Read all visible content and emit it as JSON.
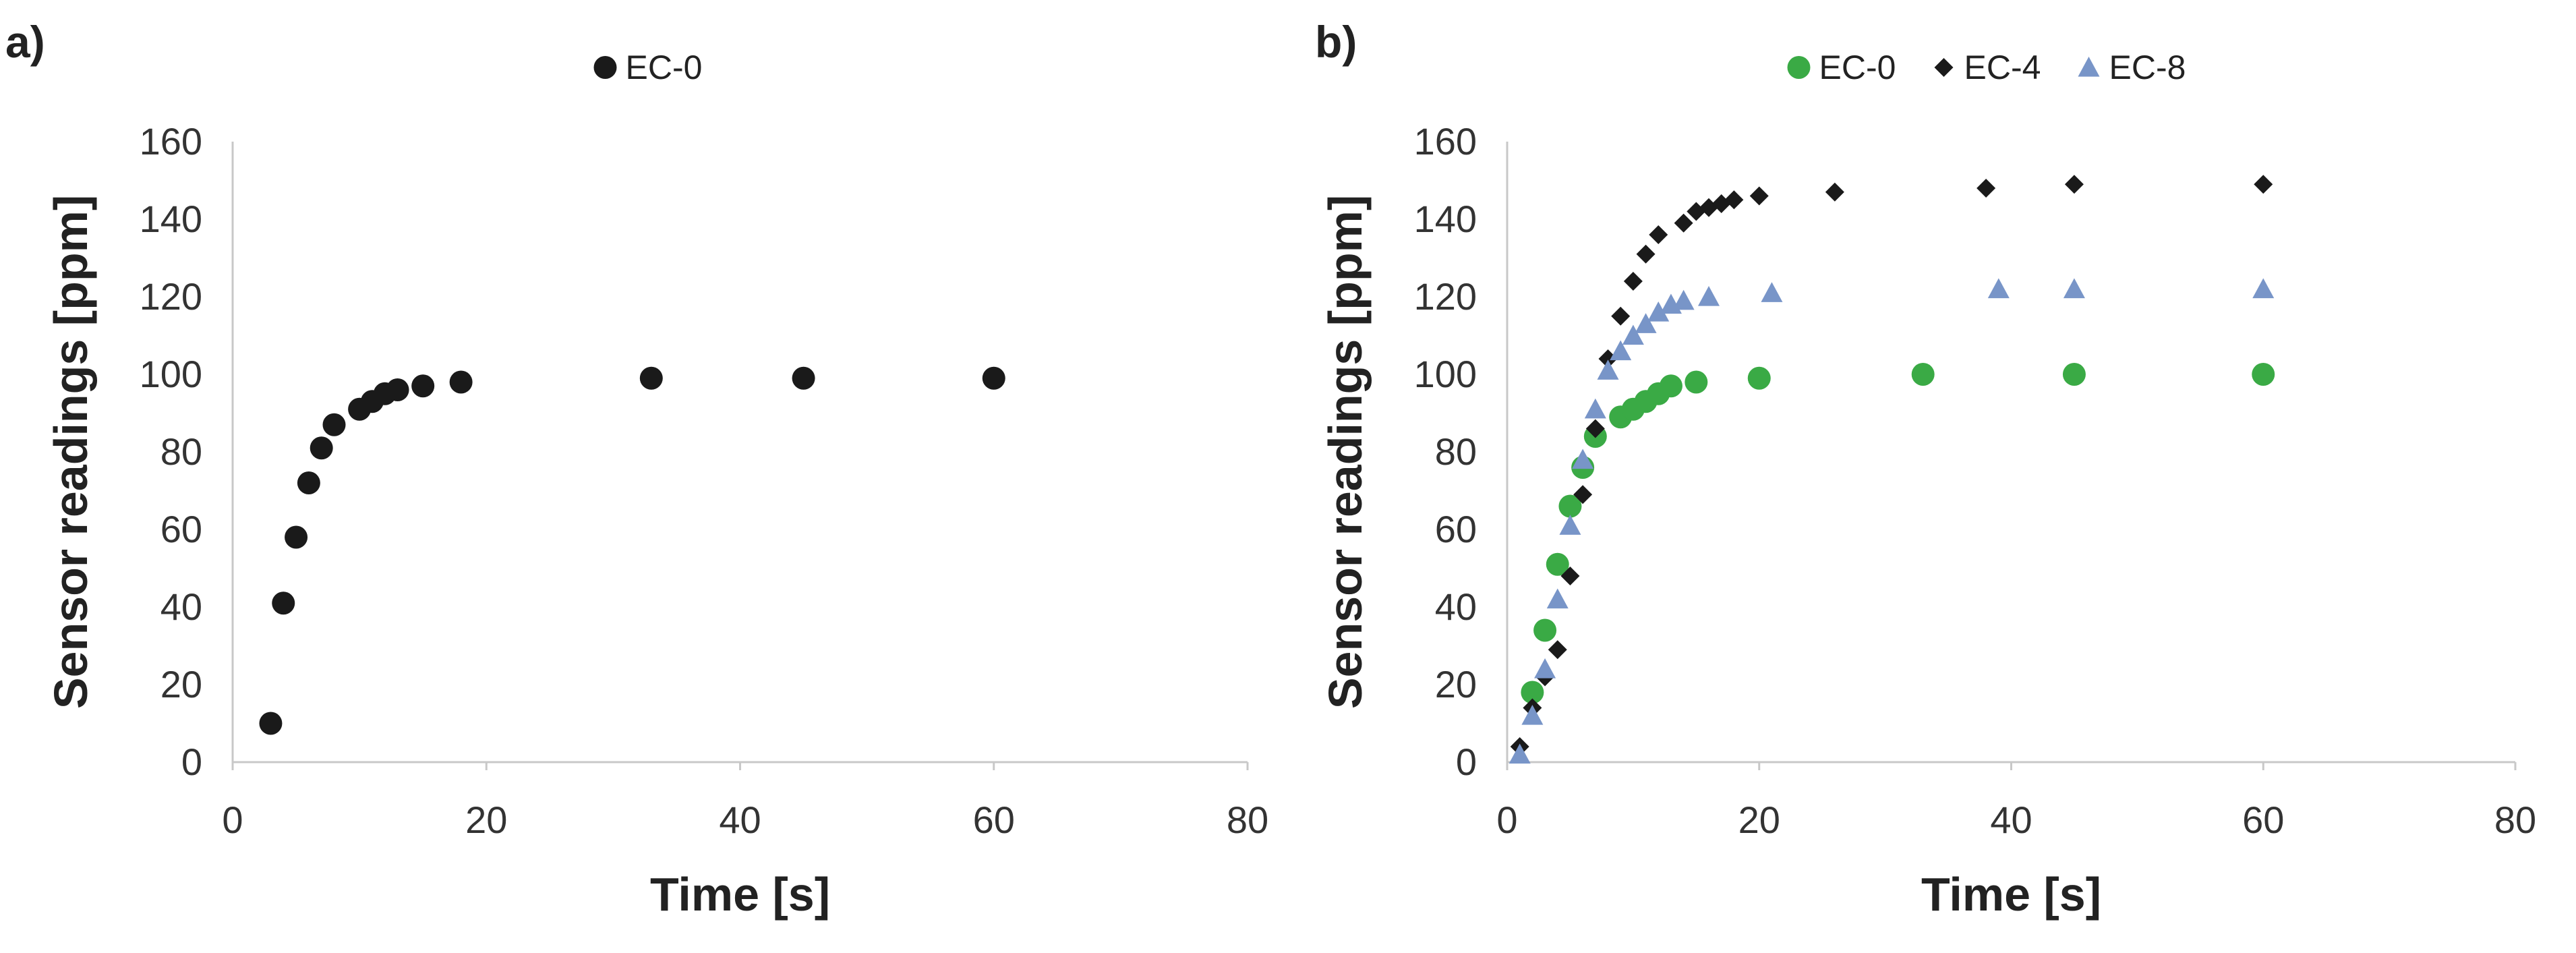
{
  "chart_data": [
    {
      "type": "scatter",
      "panel_label": "a)",
      "xlabel": "Time [s]",
      "ylabel": "Sensor readings [ppm]",
      "xlim": [
        0,
        80
      ],
      "ylim": [
        0,
        160
      ],
      "xticks": [
        0,
        20,
        40,
        60,
        80
      ],
      "yticks": [
        0,
        20,
        40,
        60,
        80,
        100,
        120,
        140,
        160
      ],
      "grid": false,
      "legend_position": "top-center",
      "series": [
        {
          "name": "EC-0",
          "marker": "circle",
          "color": "#1a1a1a",
          "x": [
            3,
            4,
            5,
            6,
            7,
            8,
            10,
            11,
            12,
            13,
            15,
            18,
            33,
            45,
            60
          ],
          "y": [
            10,
            41,
            58,
            72,
            81,
            87,
            91,
            93,
            95,
            96,
            97,
            98,
            99,
            99,
            99
          ]
        }
      ]
    },
    {
      "type": "scatter",
      "panel_label": "b)",
      "xlabel": "Time [s]",
      "ylabel": "Sensor readings [ppm]",
      "xlim": [
        0,
        80
      ],
      "ylim": [
        0,
        160
      ],
      "xticks": [
        0,
        20,
        40,
        60,
        80
      ],
      "yticks": [
        0,
        20,
        40,
        60,
        80,
        100,
        120,
        140,
        160
      ],
      "grid": false,
      "legend_position": "top-center",
      "series": [
        {
          "name": "EC-0",
          "marker": "circle",
          "color": "#3aaa45",
          "x": [
            2,
            3,
            4,
            5,
            6,
            7,
            9,
            10,
            11,
            12,
            13,
            15,
            20,
            33,
            45,
            60
          ],
          "y": [
            18,
            34,
            51,
            66,
            76,
            84,
            89,
            91,
            93,
            95,
            97,
            98,
            99,
            100,
            100,
            100
          ]
        },
        {
          "name": "EC-4",
          "marker": "diamond",
          "color": "#1a1a1a",
          "x": [
            1,
            2,
            3,
            4,
            5,
            6,
            7,
            8,
            9,
            10,
            11,
            12,
            14,
            15,
            16,
            17,
            18,
            20,
            26,
            38,
            45,
            60
          ],
          "y": [
            4,
            14,
            22,
            29,
            48,
            69,
            86,
            104,
            115,
            124,
            131,
            136,
            139,
            142,
            143,
            144,
            145,
            146,
            147,
            148,
            149,
            149
          ]
        },
        {
          "name": "EC-8",
          "marker": "triangle",
          "color": "#7895c8",
          "x": [
            1,
            2,
            3,
            4,
            5,
            6,
            7,
            8,
            9,
            10,
            11,
            12,
            13,
            14,
            16,
            21,
            39,
            45,
            60
          ],
          "y": [
            2,
            12,
            24,
            42,
            61,
            78,
            91,
            101,
            106,
            110,
            113,
            116,
            118,
            119,
            120,
            121,
            122,
            122,
            122
          ]
        }
      ]
    }
  ]
}
